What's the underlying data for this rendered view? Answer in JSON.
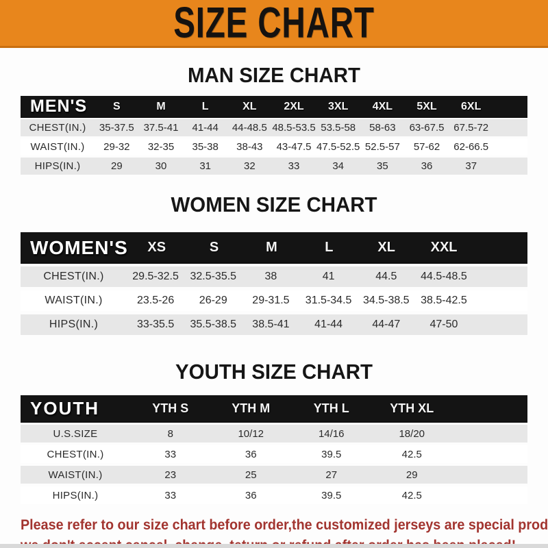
{
  "banner": {
    "title": "SIZE CHART",
    "bg_color": "#E8861C",
    "text_color": "#151210"
  },
  "colors": {
    "table_header_bg": "#141414",
    "row_stripe": "#e7e7e7",
    "disclaimer_red": "#A2342F"
  },
  "sections": [
    {
      "title": "MAN SIZE CHART",
      "table": {
        "header_label": "MEN'S",
        "columns": [
          "S",
          "M",
          "L",
          "XL",
          "2XL",
          "3XL",
          "4XL",
          "5XL",
          "6XL"
        ],
        "rows": [
          {
            "label": "CHEST(IN.)",
            "values": [
              "35-37.5",
              "37.5-41",
              "41-44",
              "44-48.5",
              "48.5-53.5",
              "53.5-58",
              "58-63",
              "63-67.5",
              "67.5-72"
            ]
          },
          {
            "label": "WAIST(IN.)",
            "values": [
              "29-32",
              "32-35",
              "35-38",
              "38-43",
              "43-47.5",
              "47.5-52.5",
              "52.5-57",
              "57-62",
              "62-66.5"
            ]
          },
          {
            "label": "HIPS(IN.)",
            "values": [
              "29",
              "30",
              "31",
              "32",
              "33",
              "34",
              "35",
              "36",
              "37"
            ]
          }
        ]
      }
    },
    {
      "title": "WOMEN SIZE CHART",
      "table": {
        "header_label": "WOMEN'S",
        "columns": [
          "XS",
          "S",
          "M",
          "L",
          "XL",
          "XXL"
        ],
        "rows": [
          {
            "label": "CHEST(IN.)",
            "values": [
              "29.5-32.5",
              "32.5-35.5",
              "38",
              "41",
              "44.5",
              "44.5-48.5"
            ]
          },
          {
            "label": "WAIST(IN.)",
            "values": [
              "23.5-26",
              "26-29",
              "29-31.5",
              "31.5-34.5",
              "34.5-38.5",
              "38.5-42.5"
            ]
          },
          {
            "label": "HIPS(IN.)",
            "values": [
              "33-35.5",
              "35.5-38.5",
              "38.5-41",
              "41-44",
              "44-47",
              "47-50"
            ]
          }
        ]
      }
    },
    {
      "title": "YOUTH SIZE CHART",
      "table": {
        "header_label": "YOUTH",
        "columns": [
          "YTH S",
          "YTH M",
          "YTH L",
          "YTH XL"
        ],
        "rows": [
          {
            "label": "U.S.SIZE",
            "values": [
              "8",
              "10/12",
              "14/16",
              "18/20"
            ]
          },
          {
            "label": "CHEST(IN.)",
            "values": [
              "33",
              "36",
              "39.5",
              "42.5"
            ]
          },
          {
            "label": "WAIST(IN.)",
            "values": [
              "23",
              "25",
              "27",
              "29"
            ]
          },
          {
            "label": "HIPS(IN.)",
            "values": [
              "33",
              "36",
              "39.5",
              "42.5"
            ]
          }
        ]
      }
    }
  ],
  "disclaimer": {
    "line1": "Please refer to our size chart before order,the customized jerseys are special products,",
    "line2": "we don't accept cancel, change, teturn or refund after order has been placed!"
  }
}
